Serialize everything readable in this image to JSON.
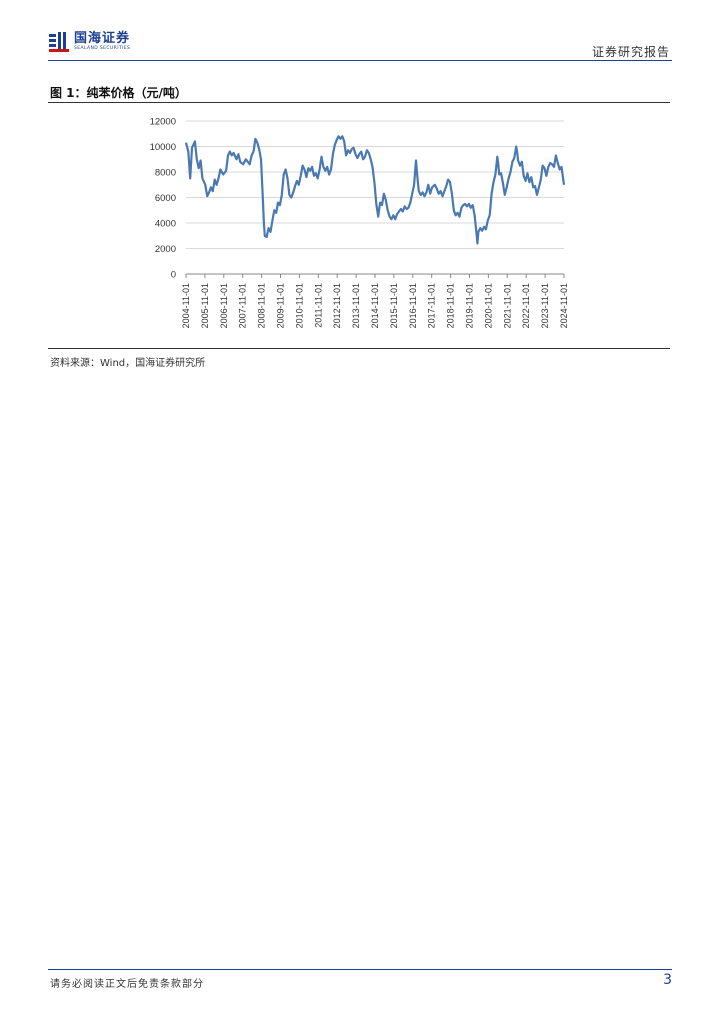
{
  "header": {
    "logo_cn": "国海证券",
    "logo_en": "SEALAND SECURITIES",
    "report_type": "证券研究报告"
  },
  "figure": {
    "title": "图 1：纯苯价格（元/吨）",
    "source": "资料来源：Wind，国海证券研究所"
  },
  "chart_data": {
    "type": "line",
    "title": "",
    "xlabel": "",
    "ylabel": "",
    "ylim": [
      0,
      12000
    ],
    "yticks": [
      0,
      2000,
      4000,
      6000,
      8000,
      10000,
      12000
    ],
    "x_start": 2004.83,
    "x_end": 2024.83,
    "xticks": [
      "2004-11-01",
      "2005-11-01",
      "2006-11-01",
      "2007-11-01",
      "2008-11-01",
      "2009-11-01",
      "2010-11-01",
      "2011-11-01",
      "2012-11-01",
      "2013-11-01",
      "2014-11-01",
      "2015-11-01",
      "2016-11-01",
      "2017-11-01",
      "2018-11-01",
      "2019-11-01",
      "2020-11-01",
      "2021-11-01",
      "2022-11-01",
      "2023-11-01",
      "2024-11-01"
    ],
    "series": [
      {
        "name": "纯苯价格",
        "color": "#4a78b0",
        "points": [
          [
            2004.83,
            10300
          ],
          [
            2004.95,
            9600
          ],
          [
            2005.05,
            7500
          ],
          [
            2005.15,
            9900
          ],
          [
            2005.3,
            10400
          ],
          [
            2005.4,
            9000
          ],
          [
            2005.5,
            8300
          ],
          [
            2005.6,
            8900
          ],
          [
            2005.7,
            7500
          ],
          [
            2005.85,
            7000
          ],
          [
            2005.95,
            6100
          ],
          [
            2006.05,
            6400
          ],
          [
            2006.15,
            6800
          ],
          [
            2006.25,
            6500
          ],
          [
            2006.35,
            7400
          ],
          [
            2006.45,
            7000
          ],
          [
            2006.55,
            7500
          ],
          [
            2006.65,
            8200
          ],
          [
            2006.8,
            7800
          ],
          [
            2006.95,
            8100
          ],
          [
            2007.05,
            9300
          ],
          [
            2007.15,
            9600
          ],
          [
            2007.25,
            9300
          ],
          [
            2007.35,
            9500
          ],
          [
            2007.5,
            9000
          ],
          [
            2007.6,
            9400
          ],
          [
            2007.7,
            8800
          ],
          [
            2007.85,
            8600
          ],
          [
            2008.0,
            9000
          ],
          [
            2008.1,
            8800
          ],
          [
            2008.2,
            8600
          ],
          [
            2008.3,
            9300
          ],
          [
            2008.4,
            9600
          ],
          [
            2008.5,
            10600
          ],
          [
            2008.6,
            10300
          ],
          [
            2008.7,
            9800
          ],
          [
            2008.8,
            9000
          ],
          [
            2008.88,
            6500
          ],
          [
            2008.95,
            4000
          ],
          [
            2009.0,
            3000
          ],
          [
            2009.1,
            2900
          ],
          [
            2009.2,
            3600
          ],
          [
            2009.3,
            3300
          ],
          [
            2009.4,
            4200
          ],
          [
            2009.5,
            5000
          ],
          [
            2009.6,
            4800
          ],
          [
            2009.7,
            5600
          ],
          [
            2009.8,
            5400
          ],
          [
            2009.9,
            6200
          ],
          [
            2010.0,
            7800
          ],
          [
            2010.1,
            8200
          ],
          [
            2010.2,
            7500
          ],
          [
            2010.3,
            6200
          ],
          [
            2010.4,
            6000
          ],
          [
            2010.5,
            6400
          ],
          [
            2010.6,
            6900
          ],
          [
            2010.7,
            7300
          ],
          [
            2010.8,
            7000
          ],
          [
            2010.9,
            7700
          ],
          [
            2011.0,
            8500
          ],
          [
            2011.1,
            8200
          ],
          [
            2011.2,
            7600
          ],
          [
            2011.3,
            8300
          ],
          [
            2011.4,
            8100
          ],
          [
            2011.5,
            8400
          ],
          [
            2011.6,
            7700
          ],
          [
            2011.7,
            7900
          ],
          [
            2011.8,
            7500
          ],
          [
            2011.9,
            8200
          ],
          [
            2012.0,
            9200
          ],
          [
            2012.1,
            8400
          ],
          [
            2012.2,
            8100
          ],
          [
            2012.3,
            8400
          ],
          [
            2012.4,
            7800
          ],
          [
            2012.5,
            8200
          ],
          [
            2012.6,
            9400
          ],
          [
            2012.7,
            10100
          ],
          [
            2012.8,
            10500
          ],
          [
            2012.9,
            10800
          ],
          [
            2013.0,
            10600
          ],
          [
            2013.1,
            10800
          ],
          [
            2013.2,
            10400
          ],
          [
            2013.3,
            9300
          ],
          [
            2013.4,
            9700
          ],
          [
            2013.5,
            9500
          ],
          [
            2013.6,
            9800
          ],
          [
            2013.7,
            9900
          ],
          [
            2013.8,
            9400
          ],
          [
            2013.9,
            9100
          ],
          [
            2014.0,
            9400
          ],
          [
            2014.1,
            9600
          ],
          [
            2014.2,
            9000
          ],
          [
            2014.3,
            9200
          ],
          [
            2014.4,
            9700
          ],
          [
            2014.5,
            9500
          ],
          [
            2014.6,
            9000
          ],
          [
            2014.7,
            8400
          ],
          [
            2014.8,
            7200
          ],
          [
            2014.9,
            5500
          ],
          [
            2015.0,
            4500
          ],
          [
            2015.1,
            5600
          ],
          [
            2015.2,
            5400
          ],
          [
            2015.3,
            6300
          ],
          [
            2015.4,
            5800
          ],
          [
            2015.5,
            5000
          ],
          [
            2015.6,
            4500
          ],
          [
            2015.7,
            4300
          ],
          [
            2015.8,
            4600
          ],
          [
            2015.9,
            4300
          ],
          [
            2016.0,
            4700
          ],
          [
            2016.1,
            4900
          ],
          [
            2016.2,
            5100
          ],
          [
            2016.3,
            4900
          ],
          [
            2016.4,
            5300
          ],
          [
            2016.5,
            5100
          ],
          [
            2016.6,
            5200
          ],
          [
            2016.7,
            5600
          ],
          [
            2016.8,
            6300
          ],
          [
            2016.9,
            7000
          ],
          [
            2017.0,
            8900
          ],
          [
            2017.08,
            7500
          ],
          [
            2017.15,
            6500
          ],
          [
            2017.25,
            6200
          ],
          [
            2017.35,
            6400
          ],
          [
            2017.45,
            6100
          ],
          [
            2017.55,
            6400
          ],
          [
            2017.65,
            7000
          ],
          [
            2017.75,
            6300
          ],
          [
            2017.85,
            6800
          ],
          [
            2018.0,
            7000
          ],
          [
            2018.1,
            6700
          ],
          [
            2018.2,
            6300
          ],
          [
            2018.3,
            6500
          ],
          [
            2018.4,
            6100
          ],
          [
            2018.5,
            6500
          ],
          [
            2018.6,
            6900
          ],
          [
            2018.7,
            7400
          ],
          [
            2018.8,
            7200
          ],
          [
            2018.9,
            6300
          ],
          [
            2019.0,
            5000
          ],
          [
            2019.1,
            4600
          ],
          [
            2019.2,
            4800
          ],
          [
            2019.3,
            4500
          ],
          [
            2019.4,
            5200
          ],
          [
            2019.5,
            5400
          ],
          [
            2019.6,
            5500
          ],
          [
            2019.7,
            5300
          ],
          [
            2019.8,
            5500
          ],
          [
            2019.9,
            5200
          ],
          [
            2020.0,
            5400
          ],
          [
            2020.1,
            4600
          ],
          [
            2020.2,
            3200
          ],
          [
            2020.25,
            2400
          ],
          [
            2020.3,
            3300
          ],
          [
            2020.4,
            3600
          ],
          [
            2020.5,
            3400
          ],
          [
            2020.6,
            3700
          ],
          [
            2020.7,
            3500
          ],
          [
            2020.8,
            4200
          ],
          [
            2020.9,
            4600
          ],
          [
            2021.0,
            6300
          ],
          [
            2021.1,
            7200
          ],
          [
            2021.2,
            7800
          ],
          [
            2021.3,
            9200
          ],
          [
            2021.35,
            8700
          ],
          [
            2021.4,
            7800
          ],
          [
            2021.5,
            7900
          ],
          [
            2021.6,
            7100
          ],
          [
            2021.7,
            6200
          ],
          [
            2021.8,
            6800
          ],
          [
            2021.9,
            7500
          ],
          [
            2022.0,
            8000
          ],
          [
            2022.1,
            8800
          ],
          [
            2022.2,
            9100
          ],
          [
            2022.3,
            10000
          ],
          [
            2022.35,
            9600
          ],
          [
            2022.4,
            8900
          ],
          [
            2022.5,
            8500
          ],
          [
            2022.6,
            8800
          ],
          [
            2022.7,
            7700
          ],
          [
            2022.8,
            7300
          ],
          [
            2022.9,
            7900
          ],
          [
            2023.0,
            7200
          ],
          [
            2023.1,
            7600
          ],
          [
            2023.2,
            6800
          ],
          [
            2023.3,
            6900
          ],
          [
            2023.4,
            6200
          ],
          [
            2023.5,
            6800
          ],
          [
            2023.6,
            7400
          ],
          [
            2023.7,
            8500
          ],
          [
            2023.8,
            8300
          ],
          [
            2023.9,
            7700
          ],
          [
            2024.0,
            8400
          ],
          [
            2024.1,
            8700
          ],
          [
            2024.2,
            8600
          ],
          [
            2024.3,
            8400
          ],
          [
            2024.4,
            9300
          ],
          [
            2024.5,
            8700
          ],
          [
            2024.6,
            8200
          ],
          [
            2024.7,
            8400
          ],
          [
            2024.78,
            7500
          ],
          [
            2024.83,
            7000
          ]
        ]
      }
    ]
  },
  "footer": {
    "disclaimer": "请务必阅读正文后免责条款部分",
    "page_number": "3"
  }
}
